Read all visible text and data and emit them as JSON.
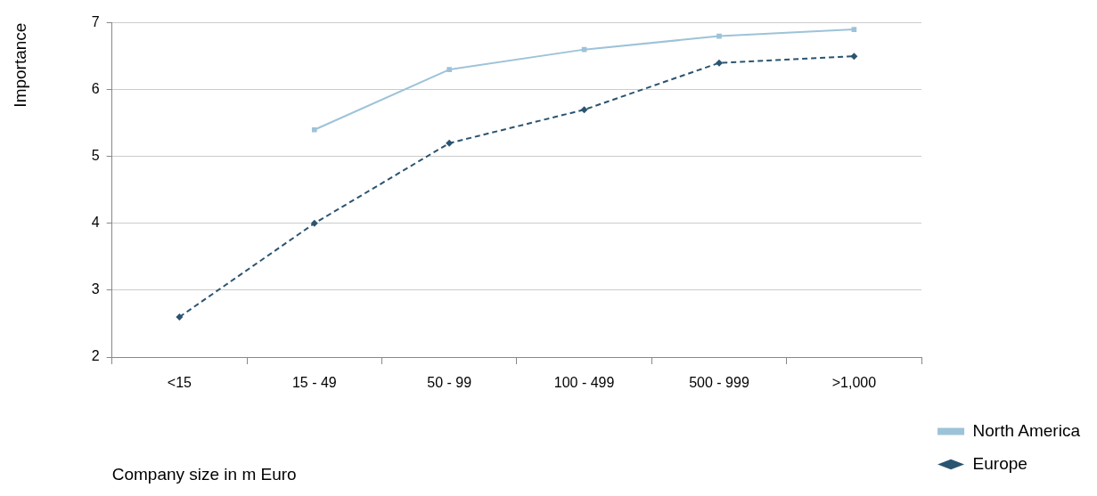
{
  "chart_data": {
    "type": "line",
    "xlabel": "Company size in m Euro",
    "ylabel": "Importance",
    "categories": [
      "<15",
      "15 - 49",
      "50 - 99",
      "100 - 499",
      "500 - 999",
      ">1,000"
    ],
    "series": [
      {
        "name": "North America",
        "color": "#9dc3d8",
        "values": [
          null,
          5.4,
          6.3,
          6.6,
          6.8,
          6.9
        ],
        "marker": "square",
        "line_style": "solid"
      },
      {
        "name": "Europe",
        "color": "#2b5470",
        "values": [
          2.6,
          4.0,
          5.2,
          5.7,
          6.4,
          6.5
        ],
        "marker": "diamond",
        "line_style": "dashed"
      }
    ],
    "ylim": [
      2,
      7
    ],
    "yticks": [
      2,
      3,
      4,
      5,
      6,
      7
    ],
    "grid": "y",
    "legend": "right"
  }
}
